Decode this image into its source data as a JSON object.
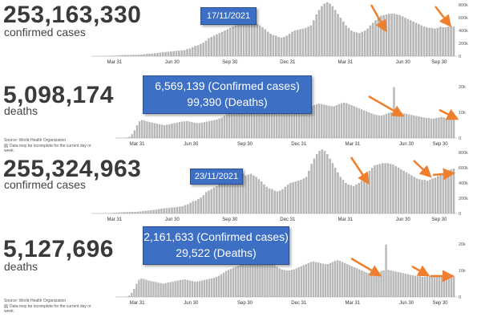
{
  "colors": {
    "bar": "#b7b7b7",
    "arrow": "#ef7f2d",
    "callout_bg": "#3d6fc4",
    "text": "#3a3a3a"
  },
  "panels": [
    {
      "big_number": "253,163,330",
      "sub_label": "confirmed cases",
      "callout": [
        "17/11/2021"
      ],
      "show_source": false,
      "chart_data": {
        "type": "bar",
        "title": "",
        "x_ticks": [
          "Mar 31",
          "Jun 30",
          "Sep 30",
          "Dec 31",
          "Mar 31",
          "Jun 30",
          "Sep 30"
        ],
        "y_ticks": [
          "800k",
          "600k",
          "400k",
          "200k",
          "0"
        ],
        "ylim": [
          0,
          800000
        ],
        "series": [
          {
            "values": [
              0,
              500,
              1000,
              2000,
              3000,
              4500,
              6000,
              8000,
              10000,
              14000,
              16000,
              18000,
              18000,
              20000,
              22000,
              20000,
              23000,
              27000,
              31000,
              36000,
              40000,
              42000,
              47000,
              50000,
              58000,
              63000,
              67000,
              70000,
              74000,
              78000,
              82000,
              86000,
              90000,
              95000,
              110000,
              120000,
              140000,
              160000,
              170000,
              190000,
              210000,
              240000,
              280000,
              300000,
              320000,
              340000,
              360000,
              380000,
              400000,
              420000,
              440000,
              460000,
              480000,
              500000,
              560000,
              540000,
              520000,
              500000,
              510000,
              520000,
              500000,
              480000,
              450000,
              420000,
              380000,
              350000,
              330000,
              320000,
              300000,
              290000,
              300000,
              320000,
              350000,
              380000,
              400000,
              410000,
              420000,
              430000,
              440000,
              460000,
              480000,
              560000,
              650000,
              720000,
              780000,
              820000,
              840000,
              820000,
              780000,
              720000,
              660000,
              600000,
              540000,
              480000,
              440000,
              400000,
              380000,
              370000,
              360000,
              380000,
              400000,
              430000,
              480000,
              520000,
              560000,
              600000,
              630000,
              640000,
              650000,
              660000,
              660000,
              660000,
              650000,
              640000,
              620000,
              600000,
              580000,
              560000,
              540000,
              520000,
              500000,
              480000,
              460000,
              450000,
              440000,
              440000,
              430000,
              440000,
              460000,
              450000,
              450000,
              460000,
              470000,
              460000
            ]
          }
        ]
      }
    },
    {
      "big_number": "5,098,174",
      "sub_label": "deaths",
      "callout": [
        "6,569,139 (Confirmed cases)",
        "99,390 (Deaths)"
      ],
      "show_source": true,
      "chart_data": {
        "type": "bar",
        "title": "",
        "x_ticks": [
          "Mar 31",
          "Jun 30",
          "Sep 30",
          "Dec 31",
          "Mar 31",
          "Jun 30",
          "Sep 30"
        ],
        "y_ticks": [
          "20k",
          "10k",
          "0"
        ],
        "ylim": [
          0,
          20000
        ],
        "series": [
          {
            "values": [
              0,
              0,
              50,
              200,
              500,
              1500,
              3000,
              5000,
              6500,
              7000,
              6800,
              6500,
              6200,
              6000,
              5800,
              5600,
              5400,
              5200,
              5000,
              5200,
              5400,
              5600,
              5800,
              6000,
              6200,
              6400,
              6500,
              6600,
              6400,
              6200,
              6000,
              5800,
              5800,
              6000,
              6200,
              6400,
              6600,
              6800,
              7000,
              7200,
              7600,
              8000,
              8600,
              9200,
              9800,
              10200,
              10600,
              11000,
              11400,
              11800,
              12200,
              12600,
              13000,
              13400,
              13800,
              14200,
              14800,
              15000,
              14600,
              14200,
              13800,
              13400,
              13000,
              12600,
              12000,
              11400,
              10800,
              10400,
              10200,
              10000,
              10000,
              10200,
              10400,
              10800,
              11200,
              11600,
              12000,
              12400,
              12800,
              13200,
              13400,
              13200,
              13000,
              12800,
              12600,
              12400,
              12400,
              12800,
              13200,
              13600,
              13800,
              13600,
              13200,
              12800,
              12400,
              12000,
              11600,
              11200,
              10800,
              10400,
              10000,
              9600,
              9200,
              9000,
              8800,
              8800,
              9000,
              9400,
              9800,
              10000,
              19800,
              10200,
              10000,
              9800,
              9600,
              9400,
              9200,
              9000,
              8800,
              8600,
              8400,
              8200,
              8000,
              7800,
              7800,
              7600,
              7600,
              7800,
              8000,
              8200,
              8000,
              7800,
              8000,
              7800,
              8000
            ]
          }
        ]
      }
    },
    {
      "big_number": "255,324,963",
      "sub_label": "confirmed cases",
      "callout": [
        "23/11/2021"
      ],
      "show_source": false,
      "chart_data": {
        "type": "bar",
        "title": "",
        "x_ticks": [
          "Mar 31",
          "Jun 30",
          "Sep 30",
          "Dec 31",
          "Mar 31",
          "Jun 30",
          "Sep 30"
        ],
        "y_ticks": [
          "800k",
          "600k",
          "400k",
          "200k",
          "0"
        ],
        "ylim": [
          0,
          800000
        ],
        "series": [
          {
            "values": [
              0,
              500,
              1000,
              2000,
              3000,
              4500,
              6000,
              8000,
              10000,
              14000,
              16000,
              18000,
              18000,
              20000,
              22000,
              20000,
              23000,
              27000,
              31000,
              36000,
              40000,
              42000,
              47000,
              50000,
              58000,
              63000,
              67000,
              70000,
              74000,
              78000,
              82000,
              86000,
              90000,
              95000,
              110000,
              120000,
              140000,
              160000,
              170000,
              190000,
              210000,
              240000,
              280000,
              300000,
              320000,
              340000,
              360000,
              380000,
              400000,
              420000,
              440000,
              460000,
              480000,
              500000,
              560000,
              540000,
              520000,
              500000,
              510000,
              520000,
              500000,
              480000,
              450000,
              420000,
              380000,
              350000,
              330000,
              320000,
              300000,
              290000,
              300000,
              320000,
              350000,
              380000,
              400000,
              410000,
              420000,
              430000,
              440000,
              460000,
              480000,
              560000,
              650000,
              720000,
              780000,
              820000,
              840000,
              820000,
              780000,
              720000,
              660000,
              600000,
              540000,
              480000,
              440000,
              400000,
              380000,
              370000,
              360000,
              380000,
              400000,
              430000,
              480000,
              520000,
              560000,
              600000,
              630000,
              640000,
              650000,
              660000,
              660000,
              660000,
              650000,
              640000,
              620000,
              600000,
              580000,
              560000,
              540000,
              520000,
              500000,
              480000,
              460000,
              450000,
              440000,
              440000,
              430000,
              440000,
              460000,
              470000,
              490000,
              510000,
              530000,
              550000,
              570000,
              580000,
              590000
            ]
          }
        ]
      }
    },
    {
      "big_number": "5,127,696",
      "sub_label": "deaths",
      "callout": [
        "2,161,633 (Confirmed cases)",
        "29,522 (Deaths)"
      ],
      "show_source": true,
      "chart_data": {
        "type": "bar",
        "title": "",
        "x_ticks": [
          "Mar 31",
          "Jun 30",
          "Sep 30",
          "Dec 31",
          "Mar 31",
          "Jun 30",
          "Sep 30"
        ],
        "y_ticks": [
          "20k",
          "10k",
          "0"
        ],
        "ylim": [
          0,
          20000
        ],
        "series": [
          {
            "values": [
              0,
              0,
              50,
              200,
              500,
              1500,
              3000,
              5000,
              6500,
              7000,
              6800,
              6500,
              6200,
              6000,
              5800,
              5600,
              5400,
              5200,
              5000,
              5200,
              5400,
              5600,
              5800,
              6000,
              6200,
              6400,
              6500,
              6600,
              6400,
              6200,
              6000,
              5800,
              5800,
              6000,
              6200,
              6400,
              6600,
              6800,
              7000,
              7200,
              7600,
              8000,
              8600,
              9200,
              9800,
              10200,
              10600,
              11000,
              11400,
              11800,
              12200,
              12600,
              13000,
              13400,
              13800,
              14200,
              14800,
              15000,
              14600,
              14200,
              13800,
              13400,
              13000,
              12600,
              12000,
              11400,
              10800,
              10400,
              10200,
              10000,
              10000,
              10200,
              10400,
              10800,
              11200,
              11600,
              12000,
              12400,
              12800,
              13200,
              13400,
              13200,
              13000,
              12800,
              12600,
              12400,
              12400,
              12800,
              13200,
              13600,
              13800,
              13600,
              13200,
              12800,
              12400,
              12000,
              11600,
              11200,
              10800,
              10400,
              10000,
              9600,
              9200,
              9000,
              8800,
              8800,
              9000,
              9400,
              9800,
              10000,
              19800,
              10200,
              10000,
              9800,
              9600,
              9400,
              9200,
              9000,
              8800,
              8600,
              8400,
              8200,
              8000,
              7800,
              7800,
              7600,
              7600,
              7800,
              8000,
              8200,
              8000,
              7800,
              8000,
              7800,
              8000,
              7900,
              8100,
              8000,
              7800
            ]
          }
        ]
      }
    }
  ],
  "source": {
    "text": "Source: World Health Organization",
    "legend": "Data may be incomplete for the current day or week."
  }
}
